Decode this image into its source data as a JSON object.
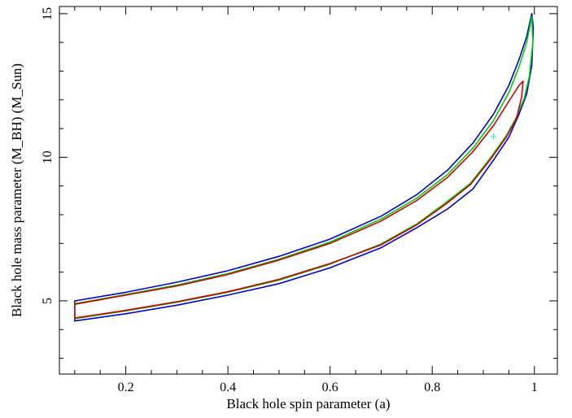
{
  "chart_data": {
    "type": "line",
    "title": "",
    "xlabel": "Black hole spin parameter (a)",
    "ylabel": "Black hole mass parameter (M_BH) (M_Sun)",
    "xlim": [
      0.07,
      1.045
    ],
    "ylim": [
      2.45,
      15.25
    ],
    "xticks": [
      0.2,
      0.4,
      0.6,
      0.8,
      1
    ],
    "xticklabels": [
      "0.2",
      "0.4",
      "0.6",
      "0.8",
      "1"
    ],
    "yticks": [
      5,
      10,
      15
    ],
    "yticklabels": [
      "5",
      "10",
      "15"
    ],
    "grid": false,
    "series": [
      {
        "color": "#0000cc",
        "closed": true,
        "points": [
          [
            0.1,
            5.0
          ],
          [
            0.2,
            5.3
          ],
          [
            0.3,
            5.65
          ],
          [
            0.4,
            6.05
          ],
          [
            0.5,
            6.55
          ],
          [
            0.6,
            7.15
          ],
          [
            0.7,
            7.95
          ],
          [
            0.77,
            8.7
          ],
          [
            0.83,
            9.55
          ],
          [
            0.88,
            10.5
          ],
          [
            0.92,
            11.5
          ],
          [
            0.95,
            12.5
          ],
          [
            0.97,
            13.4
          ],
          [
            0.985,
            14.2
          ],
          [
            0.995,
            15.0
          ],
          [
            0.998,
            14.5
          ],
          [
            0.995,
            13.2
          ],
          [
            0.985,
            12.2
          ],
          [
            0.97,
            11.5
          ],
          [
            0.95,
            10.7
          ],
          [
            0.92,
            9.9
          ],
          [
            0.88,
            8.9
          ],
          [
            0.83,
            8.2
          ],
          [
            0.77,
            7.55
          ],
          [
            0.7,
            6.85
          ],
          [
            0.6,
            6.15
          ],
          [
            0.5,
            5.6
          ],
          [
            0.4,
            5.2
          ],
          [
            0.3,
            4.85
          ],
          [
            0.2,
            4.55
          ],
          [
            0.1,
            4.3
          ],
          [
            0.1,
            5.0
          ]
        ]
      },
      {
        "color": "#00cc00",
        "closed": true,
        "points": [
          [
            0.1,
            4.9
          ],
          [
            0.2,
            5.22
          ],
          [
            0.3,
            5.55
          ],
          [
            0.4,
            5.95
          ],
          [
            0.5,
            6.45
          ],
          [
            0.6,
            7.05
          ],
          [
            0.7,
            7.85
          ],
          [
            0.77,
            8.58
          ],
          [
            0.83,
            9.4
          ],
          [
            0.88,
            10.32
          ],
          [
            0.92,
            11.28
          ],
          [
            0.95,
            12.25
          ],
          [
            0.97,
            13.15
          ],
          [
            0.985,
            14.0
          ],
          [
            0.995,
            14.9
          ],
          [
            0.997,
            14.0
          ],
          [
            0.99,
            12.8
          ],
          [
            0.98,
            12.05
          ],
          [
            0.965,
            11.4
          ],
          [
            0.945,
            10.75
          ],
          [
            0.915,
            10.0
          ],
          [
            0.875,
            9.1
          ],
          [
            0.825,
            8.4
          ],
          [
            0.77,
            7.68
          ],
          [
            0.7,
            6.98
          ],
          [
            0.6,
            6.28
          ],
          [
            0.5,
            5.72
          ],
          [
            0.4,
            5.3
          ],
          [
            0.3,
            4.95
          ],
          [
            0.2,
            4.65
          ],
          [
            0.1,
            4.38
          ],
          [
            0.1,
            4.9
          ]
        ]
      },
      {
        "color": "#cc0000",
        "closed": true,
        "points": [
          [
            0.1,
            4.88
          ],
          [
            0.2,
            5.2
          ],
          [
            0.3,
            5.52
          ],
          [
            0.4,
            5.92
          ],
          [
            0.5,
            6.42
          ],
          [
            0.6,
            7.0
          ],
          [
            0.7,
            7.78
          ],
          [
            0.77,
            8.5
          ],
          [
            0.83,
            9.3
          ],
          [
            0.88,
            10.2
          ],
          [
            0.92,
            11.1
          ],
          [
            0.95,
            11.95
          ],
          [
            0.97,
            12.5
          ],
          [
            0.978,
            12.65
          ],
          [
            0.975,
            12.1
          ],
          [
            0.965,
            11.35
          ],
          [
            0.945,
            10.7
          ],
          [
            0.915,
            9.95
          ],
          [
            0.875,
            9.05
          ],
          [
            0.825,
            8.35
          ],
          [
            0.77,
            7.65
          ],
          [
            0.7,
            6.95
          ],
          [
            0.6,
            6.3
          ],
          [
            0.5,
            5.75
          ],
          [
            0.4,
            5.32
          ],
          [
            0.3,
            4.97
          ],
          [
            0.2,
            4.67
          ],
          [
            0.1,
            4.4
          ],
          [
            0.1,
            4.88
          ]
        ]
      }
    ],
    "best_fit_marker": {
      "x": 0.92,
      "y": 10.72,
      "color": "#33dddd",
      "symbol": "+"
    }
  }
}
